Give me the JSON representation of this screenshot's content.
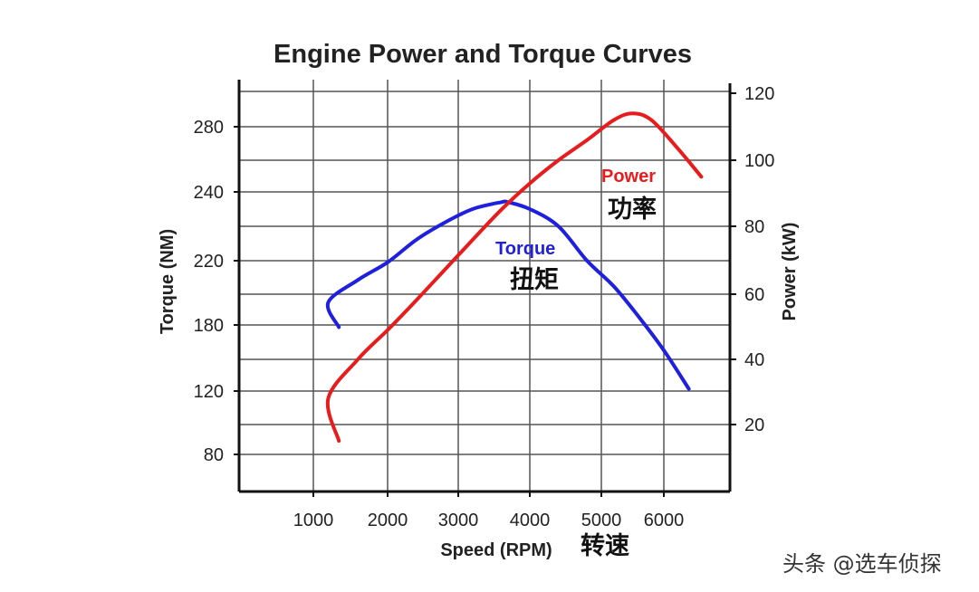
{
  "chart_data": {
    "type": "line",
    "title": "Engine Power and Torque Curves",
    "xlabel": "Speed (RPM)",
    "xlabel_cn": "转速",
    "ylabel_left": "Torque (NM)",
    "ylabel_right": "Power (kW)",
    "x_ticks": [
      1000,
      2000,
      3000,
      4000,
      5000,
      6000
    ],
    "y_left_ticks": [
      280,
      240,
      220,
      180,
      120,
      80
    ],
    "y_right_ticks": [
      120,
      100,
      80,
      60,
      40,
      20
    ],
    "grid": true,
    "series": [
      {
        "name": "Torque",
        "name_cn": "扭矩",
        "color": "#1f1fe0",
        "axis": "left",
        "x": [
          800,
          1200,
          1600,
          2000,
          2400,
          2800,
          3200,
          3600,
          3700,
          4000,
          4400,
          4800,
          5200,
          5600,
          6000,
          6400
        ],
        "y": [
          178,
          194,
          208,
          219,
          226,
          231,
          235,
          237,
          237,
          235,
          230,
          220,
          204,
          185,
          157,
          122
        ]
      },
      {
        "name": "Power",
        "name_cn": "功率",
        "color": "#e81c1c",
        "axis": "right",
        "x": [
          800,
          1200,
          1600,
          2000,
          2400,
          2800,
          3200,
          3600,
          4000,
          4400,
          4800,
          5200,
          5500,
          5800,
          6200,
          6600
        ],
        "y": [
          15,
          28,
          40,
          49,
          58,
          67,
          76,
          85,
          93,
          100,
          106,
          112,
          114,
          112,
          104,
          95
        ]
      }
    ]
  },
  "watermark": "头条 @选车侦探"
}
